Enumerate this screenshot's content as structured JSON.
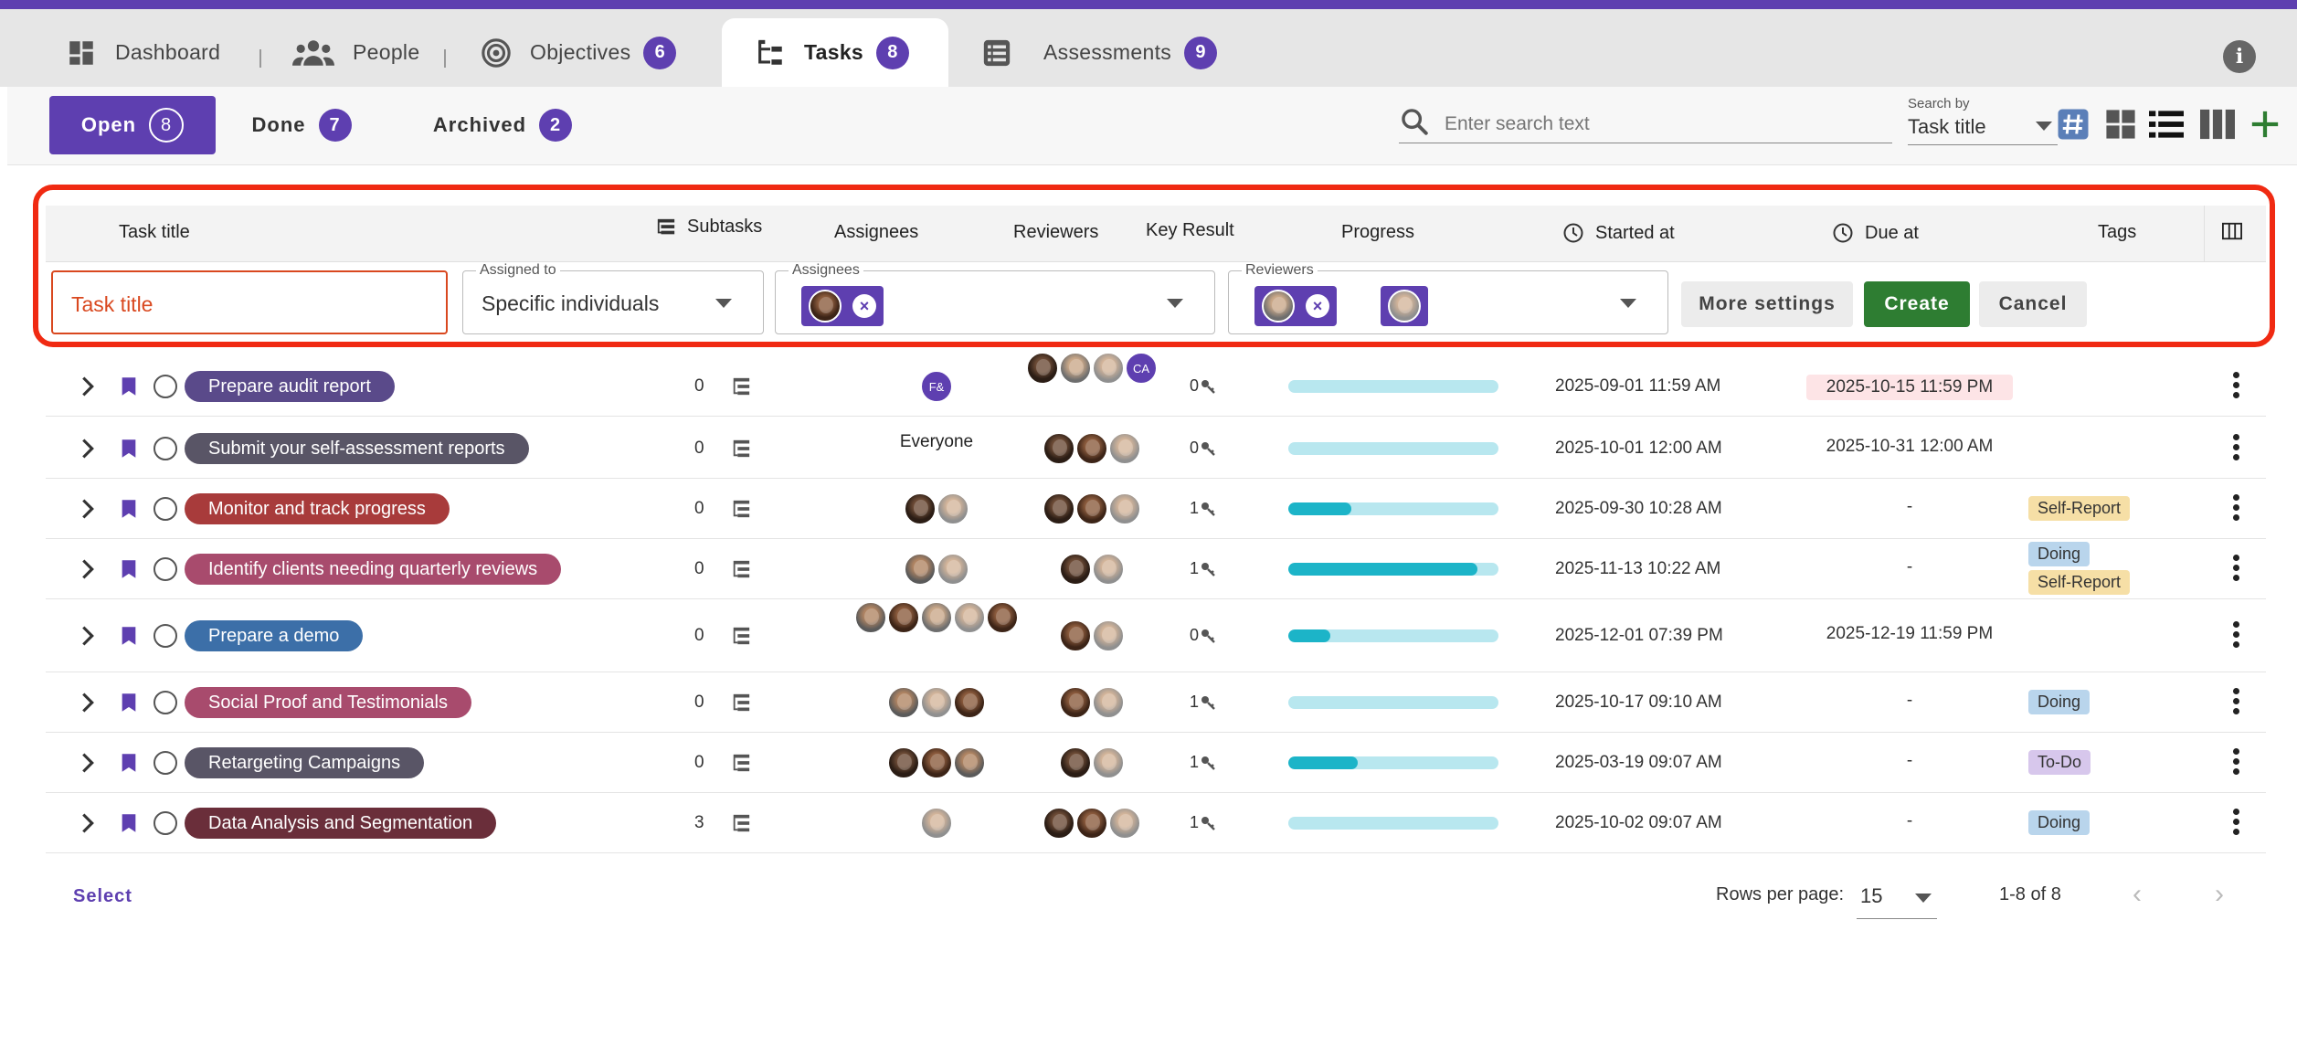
{
  "nav": {
    "items": [
      {
        "label": "Dashboard",
        "icon": "dashboard-icon"
      },
      {
        "label": "People",
        "icon": "people-icon"
      },
      {
        "label": "Objectives",
        "icon": "target-icon",
        "badge": "6"
      },
      {
        "label": "Tasks",
        "icon": "tasks-tree-icon",
        "badge": "8",
        "active": true
      },
      {
        "label": "Assessments",
        "icon": "list-icon",
        "badge": "9"
      }
    ],
    "info_label": "i"
  },
  "status_tabs": [
    {
      "label": "Open",
      "badge": "8",
      "active": true
    },
    {
      "label": "Done",
      "badge": "7"
    },
    {
      "label": "Archived",
      "badge": "2"
    }
  ],
  "search": {
    "placeholder": "Enter search text",
    "by_label": "Search by",
    "by_value": "Task title"
  },
  "columns": {
    "title": "Task title",
    "subtasks": "Subtasks",
    "assignees": "Assignees",
    "reviewers": "Reviewers",
    "key_result": "Key Result",
    "progress": "Progress",
    "started_at": "Started at",
    "due_at": "Due at",
    "tags": "Tags"
  },
  "create_form": {
    "title_placeholder": "Task title",
    "assigned_to_label": "Assigned to",
    "assigned_to_value": "Specific individuals",
    "assignees_label": "Assignees",
    "reviewers_label": "Reviewers",
    "more_settings": "More settings",
    "create": "Create",
    "cancel": "Cancel"
  },
  "rows": [
    {
      "title": "Prepare audit report",
      "color": "#5a4a8a",
      "subtasks": "0",
      "assignees_text": "",
      "assignees": [
        "F&"
      ],
      "reviewers": [
        "a",
        "b",
        "d",
        "CA"
      ],
      "key_result": "0",
      "progress": 0,
      "started": "2025-09-01 11:59 AM",
      "due": "2025-10-15 11:59 PM",
      "overdue": true,
      "tags": []
    },
    {
      "title": "Submit your self-assessment reports",
      "color": "#595566",
      "subtasks": "0",
      "assignees_text": "Everyone",
      "assignees": [],
      "reviewers": [
        "a",
        "c",
        "d"
      ],
      "key_result": "0",
      "progress": 0,
      "started": "2025-10-01 12:00 AM",
      "due": "2025-10-31 12:00 AM",
      "overdue": false,
      "tags": []
    },
    {
      "title": "Monitor and track progress",
      "color": "#a83b3b",
      "subtasks": "0",
      "assignees_text": "",
      "assignees": [
        "a",
        "d"
      ],
      "reviewers": [
        "a",
        "c",
        "d"
      ],
      "key_result": "1",
      "progress": 0.3,
      "started": "2025-09-30 10:28 AM",
      "due": "-",
      "overdue": false,
      "tags": [
        {
          "label": "Self-Report",
          "bg": "#f6dfa6"
        }
      ]
    },
    {
      "title": "Identify clients needing quarterly reviews",
      "color": "#a84b6d",
      "subtasks": "0",
      "assignees_text": "",
      "assignees": [
        "e",
        "d"
      ],
      "reviewers": [
        "a",
        "d"
      ],
      "key_result": "1",
      "progress": 0.9,
      "started": "2025-11-13 10:22 AM",
      "due": "-",
      "overdue": false,
      "tags": [
        {
          "label": "Doing",
          "bg": "#b9d5ec"
        },
        {
          "label": "Self-Report",
          "bg": "#f6dfa6"
        }
      ]
    },
    {
      "title": "Prepare a demo",
      "color": "#3c6fa8",
      "subtasks": "0",
      "assignees_text": "",
      "assignees": [
        "e",
        "c",
        "b",
        "d",
        "c"
      ],
      "reviewers": [
        "c",
        "d"
      ],
      "key_result": "0",
      "progress": 0.2,
      "started": "2025-12-01 07:39 PM",
      "due": "2025-12-19 11:59 PM",
      "overdue": false,
      "tags": []
    },
    {
      "title": "Social Proof and Testimonials",
      "color": "#a84b6d",
      "subtasks": "0",
      "assignees_text": "",
      "assignees": [
        "e",
        "d",
        "c"
      ],
      "reviewers": [
        "c",
        "d"
      ],
      "key_result": "1",
      "progress": 0,
      "started": "2025-10-17 09:10 AM",
      "due": "-",
      "overdue": false,
      "tags": [
        {
          "label": "Doing",
          "bg": "#b9d5ec"
        }
      ]
    },
    {
      "title": "Retargeting Campaigns",
      "color": "#595566",
      "subtasks": "0",
      "assignees_text": "",
      "assignees": [
        "a",
        "c",
        "e"
      ],
      "reviewers": [
        "a",
        "d"
      ],
      "key_result": "1",
      "progress": 0.33,
      "started": "2025-03-19 09:07 AM",
      "due": "-",
      "overdue": false,
      "tags": [
        {
          "label": "To-Do",
          "bg": "#d7c7ec"
        }
      ]
    },
    {
      "title": "Data Analysis and Segmentation",
      "color": "#6a2e3a",
      "subtasks": "3",
      "assignees_text": "",
      "assignees": [
        "d"
      ],
      "reviewers": [
        "a",
        "c",
        "d"
      ],
      "key_result": "1",
      "progress": 0,
      "started": "2025-10-02 09:07 AM",
      "due": "-",
      "overdue": false,
      "tags": [
        {
          "label": "Doing",
          "bg": "#b9d5ec"
        }
      ]
    }
  ],
  "footer": {
    "select": "Select",
    "rows_per_page_label": "Rows per page:",
    "rows_per_page_value": "15",
    "range": "1-8 of 8",
    "prev": "‹",
    "next": "›"
  },
  "colors": {
    "accent": "#5e3fb0",
    "create": "#2e7d32",
    "highlight": "#f02a12",
    "progress": "#1cb4c8"
  }
}
